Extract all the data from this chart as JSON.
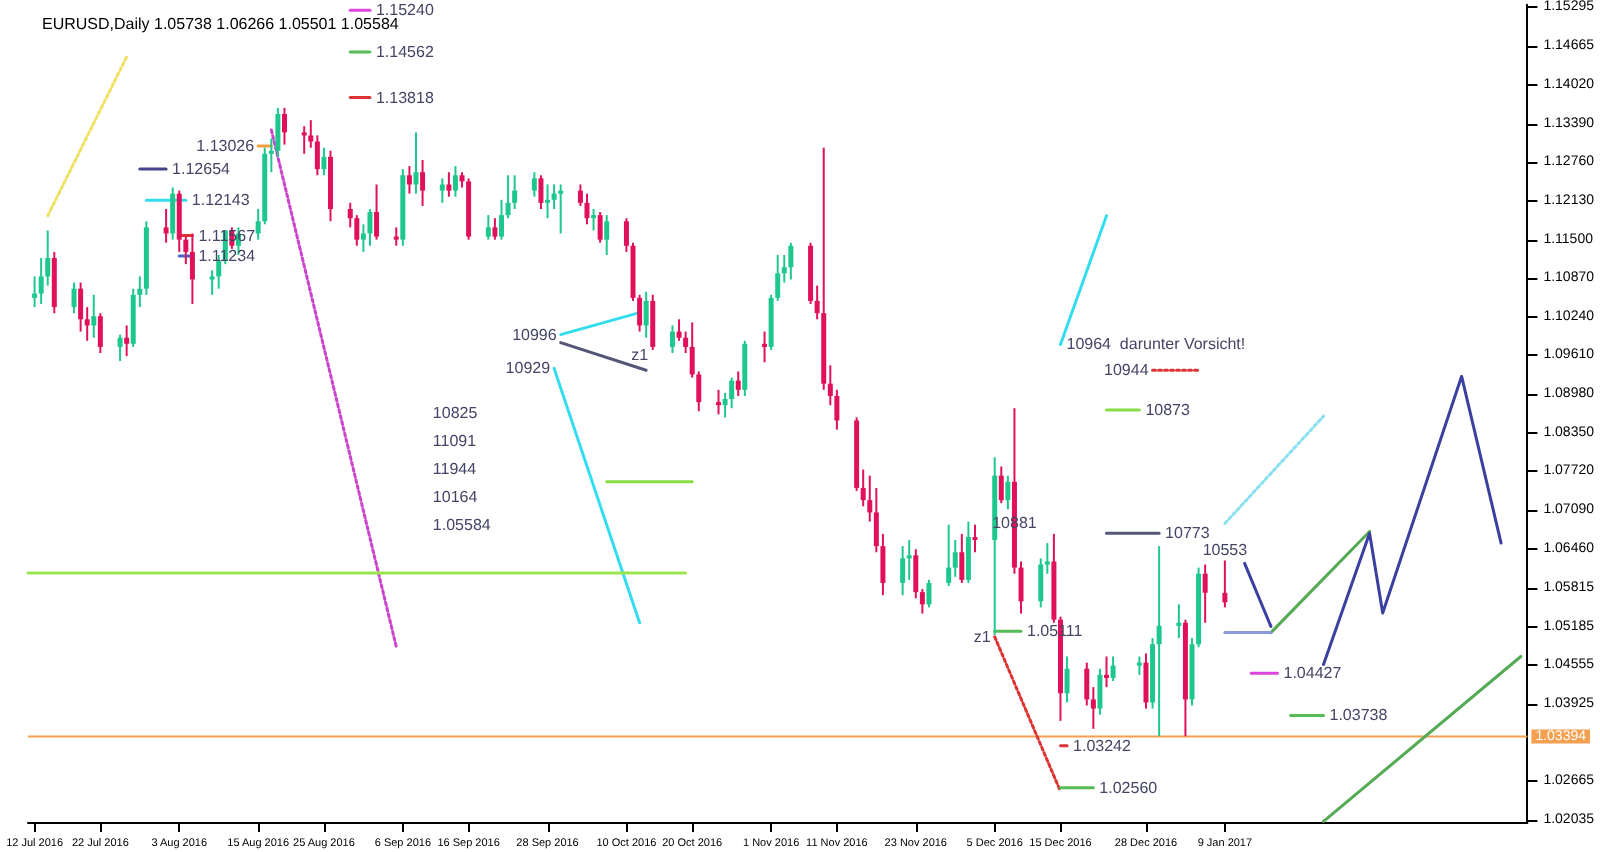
{
  "chart_data": {
    "type": "candlestick",
    "title": "EURUSD,Daily 1.05738 1.06266 1.05501 1.05584",
    "grid": false,
    "marker": "none",
    "xlim": [
      "2016-07-11",
      "2017-02-24"
    ],
    "xticks": [
      {
        "value": "2016-07-12",
        "label": "12 Jul 2016"
      },
      {
        "value": "2016-07-22",
        "label": "22 Jul 2016"
      },
      {
        "value": "2016-08-03",
        "label": "3 Aug 2016"
      },
      {
        "value": "2016-08-15",
        "label": "15 Aug 2016"
      },
      {
        "value": "2016-08-25",
        "label": "25 Aug 2016"
      },
      {
        "value": "2016-09-06",
        "label": "6 Sep 2016"
      },
      {
        "value": "2016-09-16",
        "label": "16 Sep 2016"
      },
      {
        "value": "2016-09-28",
        "label": "28 Sep 2016"
      },
      {
        "value": "2016-10-10",
        "label": "10 Oct 2016"
      },
      {
        "value": "2016-10-20",
        "label": "20 Oct 2016"
      },
      {
        "value": "2016-11-01",
        "label": "1 Nov 2016"
      },
      {
        "value": "2016-11-11",
        "label": "11 Nov 2016"
      },
      {
        "value": "2016-11-23",
        "label": "23 Nov 2016"
      },
      {
        "value": "2016-12-05",
        "label": "5 Dec 2016"
      },
      {
        "value": "2016-12-15",
        "label": "15 Dec 2016"
      },
      {
        "value": "2016-12-28",
        "label": "28 Dec 2016"
      },
      {
        "value": "2017-01-09",
        "label": "9 Jan 2017"
      }
    ],
    "ylim": [
      1.02,
      1.1533
    ],
    "yticks": [
      1.15295,
      1.14665,
      {
        "value": 1.1402,
        "label": "1.14020"
      },
      {
        "value": 1.1339,
        "label": "1.13390"
      },
      {
        "value": 1.1276,
        "label": "1.12760"
      },
      {
        "value": 1.1213,
        "label": "1.12130"
      },
      {
        "value": 1.115,
        "label": "1.11500"
      },
      {
        "value": 1.1087,
        "label": "1.10870"
      },
      {
        "value": 1.1024,
        "label": "1.10240"
      },
      {
        "value": 1.0961,
        "label": "1.09610"
      },
      {
        "value": 1.0898,
        "label": "1.08980"
      },
      {
        "value": 1.0835,
        "label": "1.08350"
      },
      {
        "value": 1.0772,
        "label": "1.07720"
      },
      {
        "value": 1.0709,
        "label": "1.07090"
      },
      {
        "value": 1.0646,
        "label": "1.06460"
      },
      1.05815,
      1.05185,
      1.04555,
      1.03925,
      1.02665,
      1.02035
    ],
    "x": [
      "2016-07-12",
      "2016-07-13",
      "2016-07-14",
      "2016-07-15",
      "2016-07-18",
      "2016-07-19",
      "2016-07-20",
      "2016-07-21",
      "2016-07-22",
      "2016-07-25",
      "2016-07-26",
      "2016-07-27",
      "2016-07-28",
      "2016-07-29",
      "2016-08-01",
      "2016-08-02",
      "2016-08-03",
      "2016-08-04",
      "2016-08-05",
      "2016-08-08",
      "2016-08-09",
      "2016-08-10",
      "2016-08-11",
      "2016-08-12",
      "2016-08-15",
      "2016-08-16",
      "2016-08-17",
      "2016-08-18",
      "2016-08-19",
      "2016-08-22",
      "2016-08-23",
      "2016-08-24",
      "2016-08-25",
      "2016-08-26",
      "2016-08-29",
      "2016-08-30",
      "2016-08-31",
      "2016-09-01",
      "2016-09-02",
      "2016-09-05",
      "2016-09-06",
      "2016-09-07",
      "2016-09-08",
      "2016-09-09",
      "2016-09-12",
      "2016-09-13",
      "2016-09-14",
      "2016-09-15",
      "2016-09-16",
      "2016-09-19",
      "2016-09-20",
      "2016-09-21",
      "2016-09-22",
      "2016-09-23",
      "2016-09-26",
      "2016-09-27",
      "2016-09-28",
      "2016-09-29",
      "2016-09-30",
      "2016-10-03",
      "2016-10-04",
      "2016-10-05",
      "2016-10-06",
      "2016-10-07",
      "2016-10-10",
      "2016-10-11",
      "2016-10-12",
      "2016-10-13",
      "2016-10-14",
      "2016-10-17",
      "2016-10-18",
      "2016-10-19",
      "2016-10-20",
      "2016-10-21",
      "2016-10-24",
      "2016-10-25",
      "2016-10-26",
      "2016-10-27",
      "2016-10-28",
      "2016-10-31",
      "2016-11-01",
      "2016-11-02",
      "2016-11-03",
      "2016-11-04",
      "2016-11-07",
      "2016-11-08",
      "2016-11-09",
      "2016-11-10",
      "2016-11-11",
      "2016-11-14",
      "2016-11-15",
      "2016-11-16",
      "2016-11-17",
      "2016-11-18",
      "2016-11-21",
      "2016-11-22",
      "2016-11-23",
      "2016-11-24",
      "2016-11-25",
      "2016-11-28",
      "2016-11-29",
      "2016-11-30",
      "2016-12-01",
      "2016-12-02",
      "2016-12-05",
      "2016-12-06",
      "2016-12-07",
      "2016-12-08",
      "2016-12-09",
      "2016-12-12",
      "2016-12-13",
      "2016-12-14",
      "2016-12-15",
      "2016-12-16",
      "2016-12-19",
      "2016-12-20",
      "2016-12-21",
      "2016-12-22",
      "2016-12-23",
      "2016-12-27",
      "2016-12-28",
      "2016-12-29",
      "2016-12-30",
      "2017-01-02",
      "2017-01-03",
      "2017-01-04",
      "2017-01-05",
      "2017-01-06",
      "2017-01-09"
    ],
    "ohlc": [
      [
        1.1055,
        1.109,
        1.104,
        1.1062
      ],
      [
        1.1062,
        1.112,
        1.1045,
        1.109
      ],
      [
        1.109,
        1.1165,
        1.1075,
        1.112
      ],
      [
        1.112,
        1.113,
        1.103,
        1.104
      ],
      [
        1.104,
        1.108,
        1.103,
        1.107
      ],
      [
        1.107,
        1.108,
        1.1,
        1.102
      ],
      [
        1.102,
        1.104,
        1.0985,
        1.101
      ],
      [
        1.101,
        1.106,
        1.099,
        1.1025
      ],
      [
        1.1025,
        1.103,
        1.0965,
        1.0975
      ],
      [
        1.0975,
        1.0995,
        1.0952,
        1.099
      ],
      [
        1.099,
        1.101,
        1.096,
        1.098
      ],
      [
        1.098,
        1.107,
        1.0975,
        1.106
      ],
      [
        1.106,
        1.109,
        1.104,
        1.107
      ],
      [
        1.107,
        1.118,
        1.106,
        1.117
      ],
      [
        1.117,
        1.12,
        1.1145,
        1.116
      ],
      [
        1.116,
        1.1235,
        1.115,
        1.1225
      ],
      [
        1.1225,
        1.123,
        1.113,
        1.115
      ],
      [
        1.115,
        1.1155,
        1.111,
        1.113
      ],
      [
        1.113,
        1.116,
        1.1045,
        1.1085
      ],
      [
        1.1085,
        1.11,
        1.106,
        1.109
      ],
      [
        1.109,
        1.1125,
        1.107,
        1.1115
      ],
      [
        1.1115,
        1.1165,
        1.111,
        1.1165
      ],
      [
        1.1165,
        1.117,
        1.1135,
        1.114
      ],
      [
        1.114,
        1.117,
        1.1125,
        1.116
      ],
      [
        1.116,
        1.12,
        1.115,
        1.118
      ],
      [
        1.118,
        1.13,
        1.1175,
        1.129
      ],
      [
        1.129,
        1.1315,
        1.126,
        1.1295
      ],
      [
        1.1295,
        1.1365,
        1.1285,
        1.1355
      ],
      [
        1.1355,
        1.1365,
        1.1305,
        1.1325
      ],
      [
        1.1325,
        1.1335,
        1.129,
        1.132
      ],
      [
        1.132,
        1.1345,
        1.13,
        1.131
      ],
      [
        1.131,
        1.132,
        1.1255,
        1.1265
      ],
      [
        1.1265,
        1.13,
        1.1255,
        1.1285
      ],
      [
        1.1285,
        1.1295,
        1.118,
        1.12
      ],
      [
        1.12,
        1.121,
        1.117,
        1.1185
      ],
      [
        1.1185,
        1.119,
        1.114,
        1.115
      ],
      [
        1.115,
        1.1175,
        1.113,
        1.116
      ],
      [
        1.116,
        1.12,
        1.114,
        1.1195
      ],
      [
        1.1195,
        1.124,
        1.115,
        1.1155
      ],
      [
        1.1155,
        1.117,
        1.114,
        1.115
      ],
      [
        1.115,
        1.1265,
        1.114,
        1.1255
      ],
      [
        1.1255,
        1.127,
        1.1225,
        1.124
      ],
      [
        1.124,
        1.1325,
        1.1225,
        1.126
      ],
      [
        1.126,
        1.128,
        1.1205,
        1.123
      ],
      [
        1.123,
        1.125,
        1.121,
        1.124
      ],
      [
        1.124,
        1.126,
        1.122,
        1.123
      ],
      [
        1.123,
        1.127,
        1.122,
        1.1255
      ],
      [
        1.1255,
        1.126,
        1.1235,
        1.1245
      ],
      [
        1.1245,
        1.125,
        1.115,
        1.1155
      ],
      [
        1.1155,
        1.119,
        1.115,
        1.117
      ],
      [
        1.117,
        1.1185,
        1.115,
        1.1155
      ],
      [
        1.1155,
        1.1215,
        1.115,
        1.119
      ],
      [
        1.119,
        1.1255,
        1.1185,
        1.121
      ],
      [
        1.121,
        1.1255,
        1.12,
        1.123
      ],
      [
        1.123,
        1.126,
        1.122,
        1.125
      ],
      [
        1.125,
        1.1255,
        1.12,
        1.121
      ],
      [
        1.121,
        1.124,
        1.1185,
        1.1215
      ],
      [
        1.1215,
        1.124,
        1.12,
        1.1225
      ],
      [
        1.1225,
        1.124,
        1.116,
        1.123
      ],
      [
        1.123,
        1.124,
        1.1205,
        1.121
      ],
      [
        1.121,
        1.1225,
        1.1175,
        1.1185
      ],
      [
        1.1185,
        1.12,
        1.1165,
        1.119
      ],
      [
        1.119,
        1.1195,
        1.1145,
        1.115
      ],
      [
        1.115,
        1.119,
        1.1125,
        1.118
      ],
      [
        1.118,
        1.1185,
        1.113,
        1.114
      ],
      [
        1.114,
        1.1145,
        1.105,
        1.1055
      ],
      [
        1.1055,
        1.106,
        1.1,
        1.101
      ],
      [
        1.101,
        1.1065,
        1.099,
        1.105
      ],
      [
        1.105,
        1.106,
        1.097,
        1.0975
      ],
      [
        1.0975,
        1.101,
        1.0965,
        1.1
      ],
      [
        1.1,
        1.102,
        1.0985,
        1.099
      ],
      [
        1.099,
        1.1,
        1.0965,
        1.0975
      ],
      [
        1.0975,
        1.1015,
        1.0925,
        1.093
      ],
      [
        1.093,
        1.0935,
        1.087,
        1.0885
      ],
      [
        1.0885,
        1.0905,
        1.0865,
        1.088
      ],
      [
        1.088,
        1.09,
        1.086,
        1.089
      ],
      [
        1.089,
        1.0925,
        1.0875,
        1.092
      ],
      [
        1.092,
        1.0935,
        1.0895,
        1.0905
      ],
      [
        1.0905,
        1.0985,
        1.0895,
        1.098
      ],
      [
        1.098,
        1.1,
        1.095,
        1.0975
      ],
      [
        1.0975,
        1.106,
        1.097,
        1.1055
      ],
      [
        1.1055,
        1.1125,
        1.105,
        1.1095
      ],
      [
        1.1095,
        1.1125,
        1.108,
        1.1105
      ],
      [
        1.1105,
        1.1145,
        1.1085,
        1.114
      ],
      [
        1.114,
        1.1145,
        1.1045,
        1.105
      ],
      [
        1.105,
        1.1075,
        1.102,
        1.103
      ],
      [
        1.103,
        1.13,
        1.0905,
        1.0915
      ],
      [
        1.0915,
        1.0945,
        1.088,
        1.0895
      ],
      [
        1.0895,
        1.0905,
        1.084,
        1.0855
      ],
      [
        1.0855,
        1.086,
        1.074,
        1.0745
      ],
      [
        1.0745,
        1.0775,
        1.0715,
        1.0725
      ],
      [
        1.0725,
        1.0765,
        1.069,
        1.0705
      ],
      [
        1.0705,
        1.0745,
        1.064,
        1.065
      ],
      [
        1.065,
        1.067,
        1.057,
        1.059
      ],
      [
        1.059,
        1.065,
        1.057,
        1.063
      ],
      [
        1.063,
        1.066,
        1.0595,
        1.0635
      ],
      [
        1.0635,
        1.0645,
        1.0565,
        1.0575
      ],
      [
        1.0575,
        1.058,
        1.054,
        1.0555
      ],
      [
        1.0555,
        1.0595,
        1.055,
        1.059
      ],
      [
        1.059,
        1.0685,
        1.0585,
        1.0615
      ],
      [
        1.0615,
        1.066,
        1.06,
        1.064
      ],
      [
        1.064,
        1.067,
        1.059,
        1.0595
      ],
      [
        1.0595,
        1.069,
        1.059,
        1.0665
      ],
      [
        1.0665,
        1.0685,
        1.064,
        1.066
      ],
      [
        1.066,
        1.0795,
        1.0505,
        1.0765
      ],
      [
        1.0765,
        1.078,
        1.072,
        1.0725
      ],
      [
        1.0725,
        1.0765,
        1.071,
        1.0755
      ],
      [
        1.0755,
        1.0875,
        1.0605,
        1.0615
      ],
      [
        1.0615,
        1.0625,
        1.054,
        1.056
      ],
      [
        1.056,
        1.063,
        1.055,
        1.062
      ],
      [
        1.062,
        1.0655,
        1.0605,
        1.0625
      ],
      [
        1.0625,
        1.067,
        1.0525,
        1.053
      ],
      [
        1.053,
        1.0535,
        1.0365,
        1.041
      ],
      [
        1.041,
        1.047,
        1.0395,
        1.045
      ],
      [
        1.045,
        1.046,
        1.039,
        1.04
      ],
      [
        1.04,
        1.042,
        1.0352,
        1.0385
      ],
      [
        1.0385,
        1.045,
        1.0375,
        1.044
      ],
      [
        1.044,
        1.047,
        1.042,
        1.0435
      ],
      [
        1.0435,
        1.047,
        1.043,
        1.0455
      ],
      [
        1.0455,
        1.047,
        1.044,
        1.046
      ],
      [
        1.046,
        1.0475,
        1.0385,
        1.0395
      ],
      [
        1.0395,
        1.05,
        1.0385,
        1.049
      ],
      [
        1.049,
        1.065,
        1.034,
        1.052
      ],
      [
        1.052,
        1.0555,
        1.05,
        1.0525
      ],
      [
        1.0525,
        1.053,
        1.034,
        1.04
      ],
      [
        1.04,
        1.05,
        1.039,
        1.049
      ],
      [
        1.049,
        1.0615,
        1.0485,
        1.0605
      ],
      [
        1.0605,
        1.062,
        1.0525,
        1.0574
      ],
      [
        1.05738,
        1.06266,
        1.05501,
        1.05584
      ]
    ],
    "colors": [
      "#1ec88c",
      "#1ec88c",
      "#1ec88c",
      "#e0105a",
      "#1ec88c",
      "#e0105a",
      "#e0105a",
      "#1ec88c",
      "#e0105a",
      "#1ec88c",
      "#e0105a",
      "#1ec88c",
      "#1ec88c",
      "#1ec88c",
      "#e0105a",
      "#1ec88c",
      "#e0105a",
      "#e0105a",
      "#e0105a",
      "#1ec88c",
      "#1ec88c",
      "#1ec88c",
      "#e0105a",
      "#1ec88c",
      "#1ec88c",
      "#1ec88c",
      "#1ec88c",
      "#1ec88c",
      "#e0105a",
      "#e0105a",
      "#e0105a",
      "#e0105a",
      "#1ec88c",
      "#e0105a",
      "#e0105a",
      "#e0105a",
      "#1ec88c",
      "#1ec88c",
      "#e0105a",
      "#e0105a",
      "#1ec88c",
      "#e0105a",
      "#1ec88c",
      "#e0105a",
      "#1ec88c",
      "#e0105a",
      "#1ec88c",
      "#e0105a",
      "#e0105a",
      "#1ec88c",
      "#e0105a",
      "#1ec88c",
      "#1ec88c",
      "#1ec88c",
      "#1ec88c",
      "#e0105a",
      "#1ec88c",
      "#1ec88c",
      "#1ec88c",
      "#e0105a",
      "#e0105a",
      "#1ec88c",
      "#e0105a",
      "#1ec88c",
      "#e0105a",
      "#e0105a",
      "#e0105a",
      "#1ec88c",
      "#e0105a",
      "#1ec88c",
      "#e0105a",
      "#e0105a",
      "#e0105a",
      "#e0105a",
      "#e0105a",
      "#1ec88c",
      "#1ec88c",
      "#e0105a",
      "#1ec88c",
      "#e0105a",
      "#1ec88c",
      "#1ec88c",
      "#1ec88c",
      "#1ec88c",
      "#e0105a",
      "#e0105a",
      "#e0105a",
      "#e0105a",
      "#e0105a",
      "#e0105a",
      "#e0105a",
      "#e0105a",
      "#e0105a",
      "#e0105a",
      "#1ec88c",
      "#1ec88c",
      "#e0105a",
      "#e0105a",
      "#1ec88c",
      "#1ec88c",
      "#1ec88c",
      "#e0105a",
      "#1ec88c",
      "#e0105a",
      "#1ec88c",
      "#e0105a",
      "#1ec88c",
      "#e0105a",
      "#e0105a",
      "#1ec88c",
      "#1ec88c",
      "#e0105a",
      "#e0105a",
      "#1ec88c",
      "#e0105a",
      "#e0105a",
      "#1ec88c",
      "#e0105a",
      "#1ec88c",
      "#1ec88c",
      "#e0105a",
      "#1ec88c",
      "#1ec88c",
      "#1ec88c",
      "#e0105a",
      "#1ec88c",
      "#1ec88c",
      "#e0105a",
      "#e0105a"
    ],
    "series": [
      {
        "type": "line",
        "color": "#f0e060",
        "line_style": "dotted",
        "x": [
          "2016-07-14",
          "2016-07-26"
        ],
        "values": [
          1.1189,
          1.1448
        ]
      },
      {
        "type": "line",
        "color": "#cc44cc",
        "line_style": "dotted",
        "x": [
          "2016-08-17",
          "2016-09-05"
        ],
        "values": [
          1.1329,
          1.0486
        ]
      },
      {
        "type": "line",
        "color": "#33ddee",
        "line_style": "solid",
        "x": [
          "2016-09-29",
          "2016-10-12"
        ],
        "values": [
          1.094,
          1.0525
        ]
      },
      {
        "type": "line",
        "color": "#33ddee",
        "line_style": "solid",
        "x": [
          "2016-09-30",
          "2016-10-12"
        ],
        "values": [
          1.0995,
          1.1031
        ]
      },
      {
        "type": "line",
        "color": "#555577",
        "line_style": "solid",
        "x": [
          "2016-09-30",
          "2016-10-13"
        ],
        "values": [
          1.0982,
          1.0937
        ]
      },
      {
        "type": "line",
        "color": "#88dd44",
        "line_style": "solid",
        "x": [
          "2016-10-07",
          "2016-10-20"
        ],
        "values": [
          1.0755,
          1.0755
        ]
      },
      {
        "type": "line",
        "color": "#99e550",
        "line_style": "solid",
        "x": [
          "2016-07-11",
          "2016-10-19"
        ],
        "values": [
          1.0606,
          1.0606
        ]
      },
      {
        "type": "line",
        "color": "#33ddee",
        "line_style": "solid",
        "x": [
          "2016-12-22",
          "2016-12-15"
        ],
        "values": [
          1.1189,
          1.0979
        ]
      },
      {
        "type": "line",
        "color": "#88e0f0",
        "line_style": "dotted",
        "x": [
          "2017-01-09",
          "2017-01-24"
        ],
        "values": [
          1.0687,
          1.0862
        ]
      },
      {
        "type": "line",
        "color": "#dd3333",
        "line_style": "dotted",
        "x": [
          "2016-12-05",
          "2016-12-15"
        ],
        "values": [
          1.0502,
          1.025
        ]
      },
      {
        "type": "line",
        "color": "#55aa55",
        "line_style": "solid",
        "x": [
          "2017-01-16",
          "2017-01-31"
        ],
        "values": [
          1.0509,
          1.0674
        ]
      },
      {
        "type": "line",
        "color": "#55aa55",
        "line_style": "solid",
        "x": [
          "2017-01-24",
          "2017-02-23"
        ],
        "values": [
          1.0201,
          1.047
        ]
      },
      {
        "type": "line",
        "color": "#555577",
        "line_style": "solid",
        "x": [
          "2016-12-22",
          "2016-12-30"
        ],
        "values": [
          1.0671,
          1.0671
        ]
      },
      {
        "type": "line",
        "color": "#8899dd",
        "line_style": "solid",
        "x": [
          "2017-01-09",
          "2017-01-16"
        ],
        "values": [
          1.0509,
          1.0509
        ]
      },
      {
        "type": "line",
        "color": "#dd3333",
        "line_style": "dotted",
        "x": [
          "2016-12-29",
          "2017-01-05"
        ],
        "values": [
          1.0937,
          1.0937
        ]
      },
      {
        "type": "line",
        "color": "#88dd44",
        "line_style": "solid",
        "x": [
          "2016-12-22",
          "2016-12-27"
        ],
        "values": [
          1.0872,
          1.0872
        ]
      },
      {
        "type": "line",
        "color": "#dd44dd",
        "line_style": "solid",
        "x": [
          "2016-08-29",
          "2016-09-01"
        ],
        "values": [
          1.1524,
          1.1524
        ]
      },
      {
        "type": "line",
        "color": "#55bb55",
        "line_style": "solid",
        "x": [
          "2016-08-29",
          "2016-09-01"
        ],
        "values": [
          1.14562,
          1.14562
        ]
      },
      {
        "type": "line",
        "color": "#dd3333",
        "line_style": "solid",
        "x": [
          "2016-08-29",
          "2016-09-01"
        ],
        "values": [
          1.13818,
          1.13818
        ]
      },
      {
        "type": "line",
        "color": "#f0a040",
        "line_style": "solid",
        "x": [
          "2016-08-15",
          "2016-08-17"
        ],
        "values": [
          1.13026,
          1.13026
        ]
      },
      {
        "type": "line",
        "color": "#444488",
        "line_style": "solid",
        "x": [
          "2016-07-28",
          "2016-08-01"
        ],
        "values": [
          1.12654,
          1.12654
        ]
      },
      {
        "type": "line",
        "color": "#33ddee",
        "line_style": "solid",
        "x": [
          "2016-07-29",
          "2016-08-04"
        ],
        "values": [
          1.12143,
          1.12143
        ]
      },
      {
        "type": "line",
        "color": "#dd3333",
        "line_style": "solid",
        "x": [
          "2016-08-03",
          "2016-08-05"
        ],
        "values": [
          1.11567,
          1.11567
        ]
      },
      {
        "type": "line",
        "color": "#4466cc",
        "line_style": "solid",
        "x": [
          "2016-08-03",
          "2016-08-05"
        ],
        "values": [
          1.11234,
          1.11234
        ]
      },
      {
        "type": "line",
        "color": "#55bb55",
        "line_style": "solid",
        "x": [
          "2016-12-05",
          "2016-12-09"
        ],
        "values": [
          1.05111,
          1.05111
        ]
      },
      {
        "type": "line",
        "color": "#dd44dd",
        "line_style": "solid",
        "x": [
          "2017-01-13",
          "2017-01-17"
        ],
        "values": [
          1.04427,
          1.04427
        ]
      },
      {
        "type": "line",
        "color": "#55bb55",
        "line_style": "solid",
        "x": [
          "2017-01-19",
          "2017-01-24"
        ],
        "values": [
          1.03738,
          1.03738
        ]
      },
      {
        "type": "line",
        "color": "#dd3333",
        "line_style": "solid",
        "x": [
          "2016-12-15",
          "2016-12-16"
        ],
        "values": [
          1.03242,
          1.03242
        ]
      },
      {
        "type": "line",
        "color": "#55bb55",
        "line_style": "solid",
        "x": [
          "2016-12-15",
          "2016-12-20"
        ],
        "values": [
          1.0256,
          1.0256
        ]
      },
      {
        "type": "line",
        "color": "#3a3fa0",
        "line_style": "solid",
        "x": [
          "2017-01-12",
          "2017-01-16",
          "2017-01-20",
          "2017-01-24",
          "2017-01-31",
          "2017-02-02",
          "2017-02-14",
          "2017-02-20"
        ],
        "values": [
          1.0622,
          1.0519,
          null,
          1.0457,
          1.0671,
          1.0541,
          1.0927,
          1.0655
        ]
      }
    ],
    "ref_lines": [
      {
        "axis": "y",
        "value": 1.03394,
        "label": "1.03394",
        "color": "#f5a050"
      }
    ],
    "annotations": [
      {
        "text": "1.15240",
        "x": "2016-09-01",
        "y": 1.1524
      },
      {
        "text": "1.14562",
        "x": "2016-09-01",
        "y": 1.14562
      },
      {
        "text": "1.13818",
        "x": "2016-09-01",
        "y": 1.13818
      },
      {
        "text": "1.13026",
        "x": "2016-08-15",
        "y": 1.13026
      },
      {
        "text": "1.12654",
        "x": "2016-08-01",
        "y": 1.12654
      },
      {
        "text": "1.12143",
        "x": "2016-08-04",
        "y": 1.12143
      },
      {
        "text": "1.11567",
        "x": "2016-08-05",
        "y": 1.11567
      },
      {
        "text": "1.11234",
        "x": "2016-08-05",
        "y": 1.11234
      },
      {
        "text": "10996",
        "x": "2016-09-30",
        "y": 1.0995
      },
      {
        "text": "10929",
        "x": "2016-09-29",
        "y": 1.094
      },
      "10825",
      {
        "text": "z1",
        "x": "2016-10-12",
        "y": 1.0945
      },
      "11091",
      "11944",
      {
        "text": "10964  darunter Vorsicht!",
        "x": "2016-12-15",
        "y": 1.0979
      },
      {
        "text": "10944",
        "x": "2016-12-29",
        "y": 1.0937
      },
      {
        "text": "10873",
        "x": "2016-12-27",
        "y": 1.0872
      },
      {
        "text": "10881",
        "x": "2016-12-08",
        "y": 1.0671
      },
      {
        "text": "10773",
        "x": "2016-12-30",
        "y": 1.0671
      },
      {
        "text": "z1",
        "x": "2016-12-05",
        "y": 1.0502
      },
      {
        "text": "1.05111",
        "x": "2016-12-09",
        "y": 1.05111
      },
      {
        "text": "10553",
        "x": "2017-01-09",
        "y": 1.06266
      },
      {
        "text": "1.04427",
        "x": "2017-01-17",
        "y": 1.04427
      },
      {
        "text": "1.03738",
        "x": "2017-01-24",
        "y": 1.03738
      },
      {
        "text": "1.03242",
        "x": "2016-12-16",
        "y": 1.03242
      },
      {
        "text": "1.02560",
        "x": "2016-12-20",
        "y": 1.0256
      },
      "10164",
      "1.05584"
    ]
  }
}
